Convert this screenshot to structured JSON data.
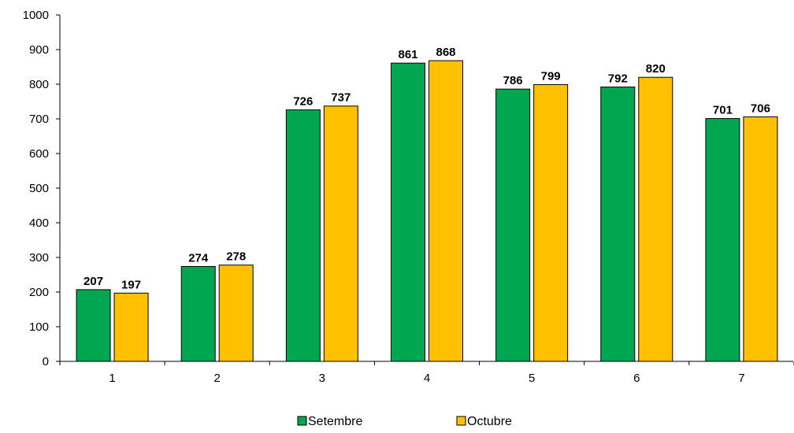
{
  "chart_data": {
    "type": "bar",
    "categories": [
      "1",
      "2",
      "3",
      "4",
      "5",
      "6",
      "7"
    ],
    "series": [
      {
        "name": "Setembre",
        "color": "#00a650",
        "values": [
          207,
          274,
          726,
          861,
          786,
          792,
          701
        ]
      },
      {
        "name": "Octubre",
        "color": "#ffc000",
        "values": [
          197,
          278,
          737,
          868,
          799,
          820,
          706
        ]
      }
    ],
    "ylim": [
      0,
      1000
    ],
    "yticks": [
      0,
      100,
      200,
      300,
      400,
      500,
      600,
      700,
      800,
      900,
      1000
    ],
    "grid": false,
    "legend_position": "bottom",
    "data_labels": true
  }
}
